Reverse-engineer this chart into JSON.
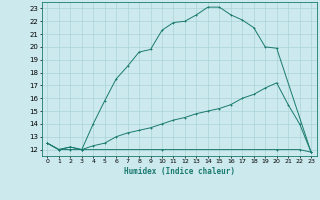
{
  "title": "",
  "xlabel": "Humidex (Indice chaleur)",
  "bg_color": "#cce9ed",
  "grid_color": "#aad4d8",
  "line_color": "#1a7a6e",
  "xlim": [
    -0.5,
    23.5
  ],
  "ylim": [
    11.5,
    23.5
  ],
  "xticks": [
    0,
    1,
    2,
    3,
    4,
    5,
    6,
    7,
    8,
    9,
    10,
    11,
    12,
    13,
    14,
    15,
    16,
    17,
    18,
    19,
    20,
    21,
    22,
    23
  ],
  "yticks": [
    12,
    13,
    14,
    15,
    16,
    17,
    18,
    19,
    20,
    21,
    22,
    23
  ],
  "curve1_x": [
    0,
    1,
    2,
    3,
    4,
    5,
    6,
    7,
    8,
    9,
    10,
    11,
    12,
    13,
    14,
    15,
    16,
    17,
    18,
    19,
    20,
    23
  ],
  "curve1_y": [
    12.5,
    12.0,
    12.2,
    12.0,
    14.0,
    15.8,
    17.5,
    18.5,
    19.6,
    19.8,
    21.3,
    21.9,
    22.0,
    22.5,
    23.1,
    23.1,
    22.5,
    22.1,
    21.5,
    20.0,
    19.9,
    11.8
  ],
  "curve2_x": [
    0,
    1,
    2,
    3,
    4,
    5,
    6,
    7,
    8,
    9,
    10,
    11,
    12,
    13,
    14,
    15,
    16,
    17,
    18,
    19,
    20,
    21,
    22,
    23
  ],
  "curve2_y": [
    12.5,
    12.0,
    12.2,
    12.0,
    12.3,
    12.5,
    13.0,
    13.3,
    13.5,
    13.7,
    14.0,
    14.3,
    14.5,
    14.8,
    15.0,
    15.2,
    15.5,
    16.0,
    16.3,
    16.8,
    17.2,
    15.5,
    14.0,
    11.8
  ],
  "curve3_x": [
    0,
    1,
    2,
    3,
    10,
    20,
    22,
    23
  ],
  "curve3_y": [
    12.5,
    12.0,
    12.0,
    12.0,
    12.0,
    12.0,
    12.0,
    11.8
  ],
  "lw": 0.7,
  "ms": 2.0
}
